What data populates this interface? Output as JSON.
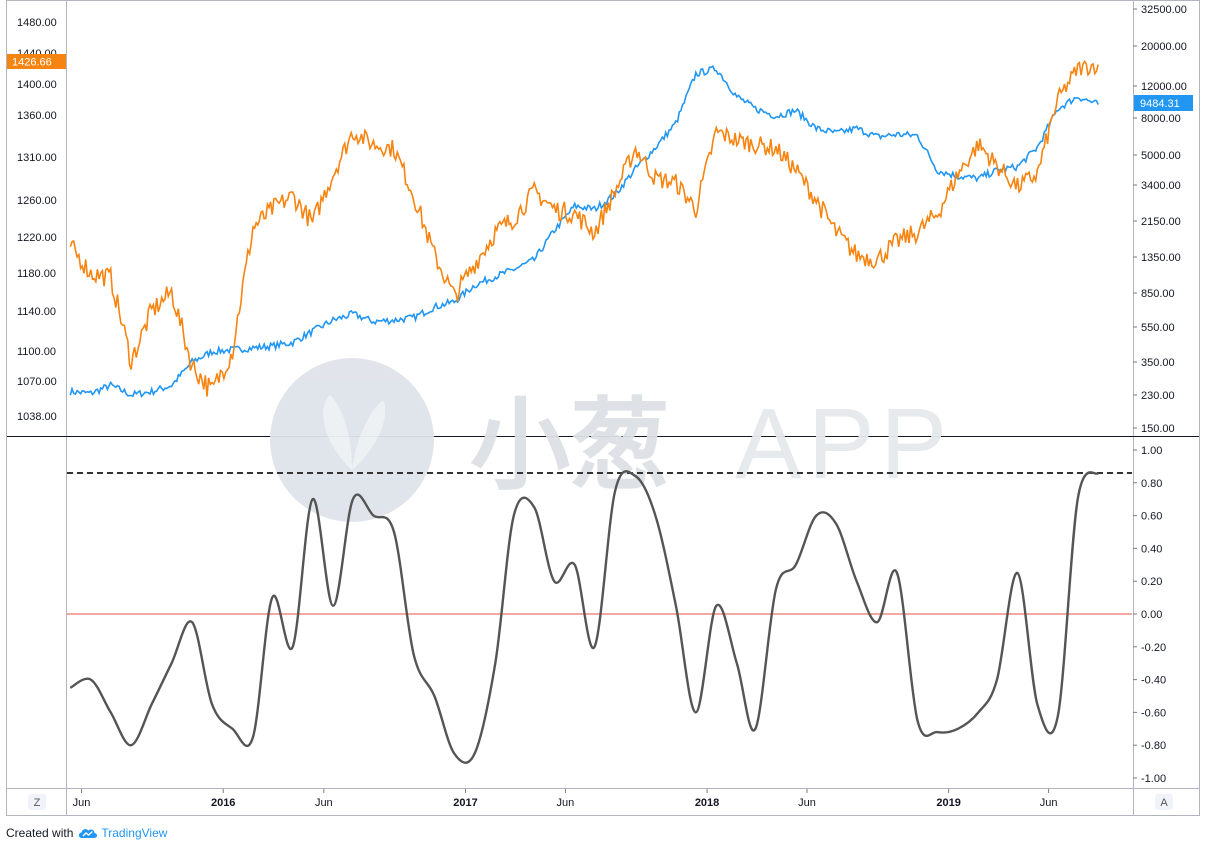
{
  "footer": {
    "created_with": "Created with",
    "brand": "TradingView",
    "brand_icon": "tradingview-cloud-icon"
  },
  "watermark": {
    "text_cn": "小葱",
    "text_latin": "APP",
    "icon": "scallion-logo-icon"
  },
  "corner_buttons": {
    "left": "Z",
    "right": "A"
  },
  "colors": {
    "left_series": "#f68410",
    "right_series": "#2196f3",
    "oscillator": "#555555",
    "zero_line": "#f28b82",
    "threshold": "#333333"
  },
  "chart_data": [
    {
      "type": "line",
      "panel": "price-overlay",
      "time_range": [
        "2015-05",
        "2019-08"
      ],
      "x_tick_labels": [
        "Jun",
        "2016",
        "Jun",
        "2017",
        "Jun",
        "2018",
        "Jun",
        "2019",
        "Jun"
      ],
      "left_axis": {
        "ticks": [
          "1480.00",
          "1440.00",
          "1400.00",
          "1360.00",
          "1310.00",
          "1260.00",
          "1220.00",
          "1180.00",
          "1140.00",
          "1100.00",
          "1070.00",
          "1038.00"
        ],
        "ylim": [
          1025,
          1495
        ],
        "last_value_label": "1426.66"
      },
      "right_axis": {
        "scale": "log",
        "ticks": [
          "32500.00",
          "20000.00",
          "12000.00",
          "8000.00",
          "5000.00",
          "3400.00",
          "2150.00",
          "1350.00",
          "850.00",
          "550.00",
          "350.00",
          "230.00",
          "150.00"
        ],
        "last_value_label": "9484.31"
      },
      "series": [
        {
          "axis": "left",
          "color": "#f68410",
          "dates": [
            "2015-05",
            "2015-06",
            "2015-07",
            "2015-08",
            "2015-09",
            "2015-10",
            "2015-11",
            "2015-12",
            "2016-01",
            "2016-02",
            "2016-03",
            "2016-04",
            "2016-05",
            "2016-06",
            "2016-07",
            "2016-08",
            "2016-09",
            "2016-10",
            "2016-11",
            "2016-12",
            "2017-01",
            "2017-02",
            "2017-03",
            "2017-04",
            "2017-05",
            "2017-06",
            "2017-07",
            "2017-08",
            "2017-09",
            "2017-10",
            "2017-11",
            "2017-12",
            "2018-01",
            "2018-02",
            "2018-03",
            "2018-04",
            "2018-05",
            "2018-06",
            "2018-07",
            "2018-08",
            "2018-09",
            "2018-10",
            "2018-11",
            "2018-12",
            "2019-01",
            "2019-02",
            "2019-03",
            "2019-04",
            "2019-05",
            "2019-06",
            "2019-07",
            "2019-08"
          ],
          "values": [
            1210,
            1180,
            1175,
            1090,
            1140,
            1160,
            1085,
            1060,
            1100,
            1230,
            1250,
            1265,
            1235,
            1290,
            1340,
            1325,
            1320,
            1265,
            1200,
            1155,
            1190,
            1225,
            1240,
            1270,
            1250,
            1245,
            1225,
            1270,
            1320,
            1285,
            1280,
            1250,
            1340,
            1330,
            1325,
            1320,
            1295,
            1260,
            1225,
            1200,
            1195,
            1215,
            1225,
            1245,
            1290,
            1325,
            1300,
            1275,
            1290,
            1380,
            1420,
            1425
          ]
        },
        {
          "axis": "right",
          "color": "#2196f3",
          "dates": [
            "2015-05",
            "2015-06",
            "2015-07",
            "2015-08",
            "2015-09",
            "2015-10",
            "2015-11",
            "2015-12",
            "2016-01",
            "2016-02",
            "2016-03",
            "2016-04",
            "2016-05",
            "2016-06",
            "2016-07",
            "2016-08",
            "2016-09",
            "2016-10",
            "2016-11",
            "2016-12",
            "2017-01",
            "2017-02",
            "2017-03",
            "2017-04",
            "2017-05",
            "2017-06",
            "2017-07",
            "2017-08",
            "2017-09",
            "2017-10",
            "2017-11",
            "2017-12",
            "2018-01",
            "2018-02",
            "2018-03",
            "2018-04",
            "2018-05",
            "2018-06",
            "2018-07",
            "2018-08",
            "2018-09",
            "2018-10",
            "2018-11",
            "2018-12",
            "2019-01",
            "2019-02",
            "2019-03",
            "2019-04",
            "2019-05",
            "2019-06",
            "2019-07",
            "2019-08"
          ],
          "values": [
            240,
            235,
            260,
            230,
            240,
            260,
            350,
            400,
            410,
            420,
            430,
            450,
            520,
            600,
            650,
            590,
            600,
            620,
            710,
            760,
            940,
            1050,
            1150,
            1300,
            1900,
            2600,
            2500,
            3000,
            4200,
            5500,
            7500,
            14000,
            15000,
            10500,
            9000,
            8200,
            8800,
            7000,
            6600,
            7000,
            6300,
            6500,
            6400,
            4100,
            3800,
            3700,
            4100,
            4300,
            5500,
            9000,
            10500,
            9484.31
          ]
        }
      ]
    },
    {
      "type": "line",
      "panel": "oscillator",
      "ticks": [
        "1.00",
        "0.80",
        "0.60",
        "0.40",
        "0.20",
        "0.00",
        "-0.20",
        "-0.40",
        "-0.60",
        "-0.80",
        "-1.00"
      ],
      "ylim": [
        -1.0,
        1.0
      ],
      "reference_lines": [
        {
          "value": 0.0,
          "style": "solid",
          "color": "#f28b82"
        },
        {
          "value": 0.86,
          "style": "dashed",
          "color": "#333333"
        }
      ],
      "series": [
        {
          "color": "#555555",
          "x": [
            "2015-05",
            "2015-06",
            "2015-07",
            "2015-08",
            "2015-09",
            "2015-10",
            "2015-11",
            "2015-12",
            "2016-01",
            "2016-02",
            "2016-03",
            "2016-04",
            "2016-05",
            "2016-06",
            "2016-07",
            "2016-08",
            "2016-09",
            "2016-10",
            "2016-11",
            "2016-12",
            "2017-01",
            "2017-02",
            "2017-03",
            "2017-04",
            "2017-05",
            "2017-06",
            "2017-07",
            "2017-08",
            "2017-09",
            "2017-10",
            "2017-11",
            "2017-12",
            "2018-01",
            "2018-02",
            "2018-03",
            "2018-04",
            "2018-05",
            "2018-06",
            "2018-07",
            "2018-08",
            "2018-09",
            "2018-10",
            "2018-11",
            "2018-12",
            "2019-01",
            "2019-02",
            "2019-03",
            "2019-04",
            "2019-05",
            "2019-06",
            "2019-07",
            "2019-08"
          ],
          "values": [
            -0.45,
            -0.4,
            -0.6,
            -0.8,
            -0.55,
            -0.3,
            -0.05,
            -0.55,
            -0.7,
            -0.75,
            0.1,
            -0.2,
            0.7,
            0.05,
            0.7,
            0.6,
            0.5,
            -0.25,
            -0.5,
            -0.85,
            -0.85,
            -0.3,
            0.6,
            0.65,
            0.2,
            0.3,
            -0.2,
            0.75,
            0.84,
            0.6,
            0.05,
            -0.6,
            0.05,
            -0.3,
            -0.7,
            0.15,
            0.3,
            0.6,
            0.55,
            0.2,
            -0.05,
            0.25,
            -0.65,
            -0.72,
            -0.7,
            -0.6,
            -0.4,
            0.25,
            -0.55,
            -0.62,
            0.7,
            0.86
          ]
        }
      ]
    }
  ]
}
